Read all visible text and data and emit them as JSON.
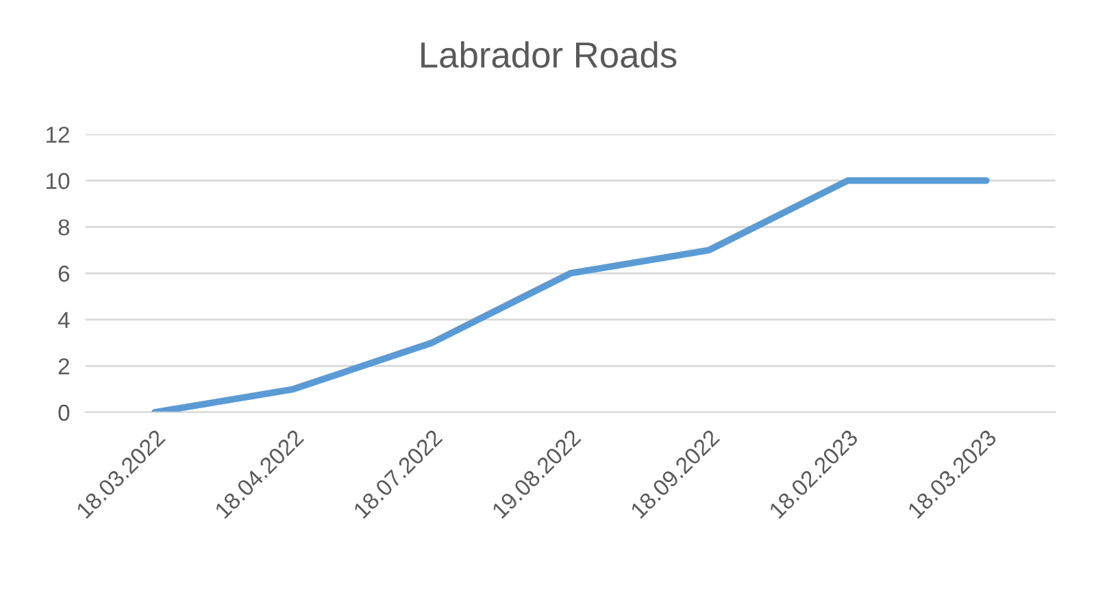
{
  "chart_data": {
    "type": "line",
    "title": "Labrador Roads",
    "categories": [
      "18.03.2022",
      "18.04.2022",
      "18.07.2022",
      "19.08.2022",
      "18.09.2022",
      "18.02.2023",
      "18.03.2023"
    ],
    "series": [
      {
        "color": "#5b9bd5",
        "values": [
          0,
          1,
          3,
          6,
          7,
          10,
          10
        ]
      }
    ],
    "ylim": [
      0,
      12
    ],
    "yticks": [
      0,
      2,
      4,
      6,
      8,
      10,
      12
    ],
    "grid": "y",
    "marker": "none",
    "line_style": "solid"
  }
}
